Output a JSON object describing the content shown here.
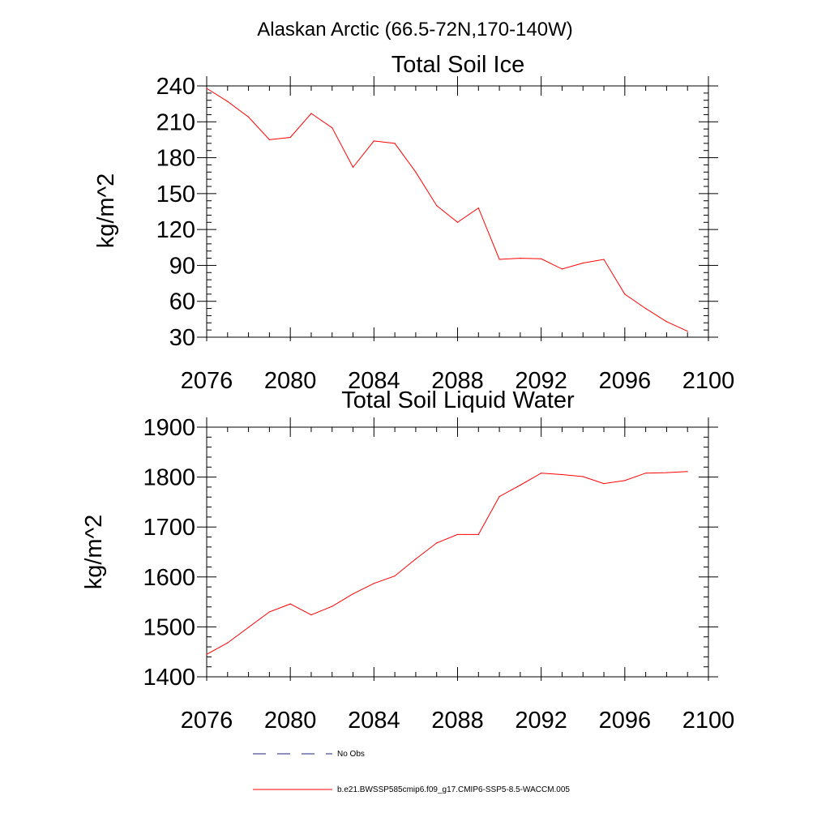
{
  "main_title": "Alaskan Arctic (66.5-72N,170-140W)",
  "chart_data": [
    {
      "type": "line",
      "title": "Total Soil Ice",
      "xlabel": "",
      "ylabel": "kg/m^2",
      "xlim": [
        2076,
        2100
      ],
      "ylim": [
        30,
        240
      ],
      "x_ticks": [
        "2076",
        "2080",
        "2084",
        "2088",
        "2092",
        "2096",
        "2100"
      ],
      "y_ticks": [
        "30",
        "60",
        "90",
        "120",
        "150",
        "180",
        "210",
        "240"
      ],
      "series": [
        {
          "name": "b.e21.BWSSP585cmip6.f09_g17.CMIP6-SSP5-8.5-WACCM.005",
          "color": "#ff0000",
          "x": [
            2076,
            2077,
            2078,
            2079,
            2080,
            2081,
            2082,
            2083,
            2084,
            2085,
            2086,
            2087,
            2088,
            2089,
            2090,
            2091,
            2092,
            2093,
            2094,
            2095,
            2096,
            2097,
            2098,
            2099
          ],
          "values": [
            238,
            227,
            214,
            195,
            197,
            217,
            205,
            172,
            194,
            192,
            168,
            140,
            126,
            138,
            95,
            96,
            95.5,
            87,
            92,
            95,
            66,
            54,
            43,
            35
          ]
        }
      ]
    },
    {
      "type": "line",
      "title": "Total Soil Liquid Water",
      "xlabel": "",
      "ylabel": "kg/m^2",
      "xlim": [
        2076,
        2100
      ],
      "ylim": [
        1400,
        1900
      ],
      "x_ticks": [
        "2076",
        "2080",
        "2084",
        "2088",
        "2092",
        "2096",
        "2100"
      ],
      "y_ticks": [
        "1400",
        "1500",
        "1600",
        "1700",
        "1800",
        "1900"
      ],
      "series": [
        {
          "name": "b.e21.BWSSP585cmip6.f09_g17.CMIP6-SSP5-8.5-WACCM.005",
          "color": "#ff0000",
          "x": [
            2076,
            2077,
            2078,
            2079,
            2080,
            2081,
            2082,
            2083,
            2084,
            2085,
            2086,
            2087,
            2088,
            2089,
            2090,
            2091,
            2092,
            2093,
            2094,
            2095,
            2096,
            2097,
            2098,
            2099
          ],
          "values": [
            1445,
            1468,
            1499,
            1530,
            1546,
            1524,
            1541,
            1566,
            1587,
            1602,
            1636,
            1668,
            1685,
            1685,
            1761,
            1784,
            1808,
            1805,
            1801,
            1787,
            1793,
            1808,
            1809,
            1811
          ]
        }
      ]
    }
  ],
  "legend": {
    "items": [
      {
        "label": "No Obs",
        "color": "#1a237e",
        "style": "dashed"
      },
      {
        "label": "b.e21.BWSSP585cmip6.f09_g17.CMIP6-SSP5-8.5-WACCM.005",
        "color": "#ff0000",
        "style": "solid"
      }
    ]
  }
}
